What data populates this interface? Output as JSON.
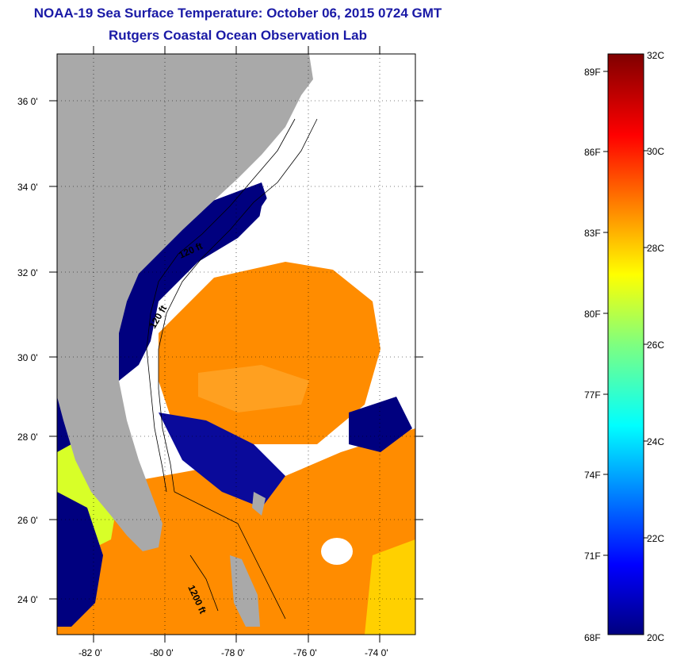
{
  "title": "NOAA-19 Sea Surface Temperature:  October 06, 2015 0724 GMT",
  "subtitle": "Rutgers Coastal Ocean Observation Lab",
  "map": {
    "lon_range": [
      -83,
      -73
    ],
    "lat_range": [
      23,
      37
    ],
    "lat_labels": [
      "36 0'",
      "34 0'",
      "32 0'",
      "30 0'",
      "28 0'",
      "26 0'",
      "24 0'"
    ],
    "lon_labels": [
      "-82 0'",
      "-80 0'",
      "-78 0'",
      "-76 0'",
      "-74 0'"
    ],
    "contour_labels": [
      "120 ft",
      "120 ft",
      "1200 ft"
    ],
    "colors": {
      "land": "#a9a9a9",
      "cloud": "#ffffff",
      "cold": "#00007f",
      "warm": "#ff8c00"
    }
  },
  "colorbar": {
    "range_c": [
      20,
      32
    ],
    "celsius_labels": [
      "32C",
      "30C",
      "28C",
      "26C",
      "24C",
      "22C",
      "20C"
    ],
    "fahrenheit_labels": [
      "89F",
      "86F",
      "83F",
      "80F",
      "77F",
      "74F",
      "71F",
      "68F"
    ]
  }
}
